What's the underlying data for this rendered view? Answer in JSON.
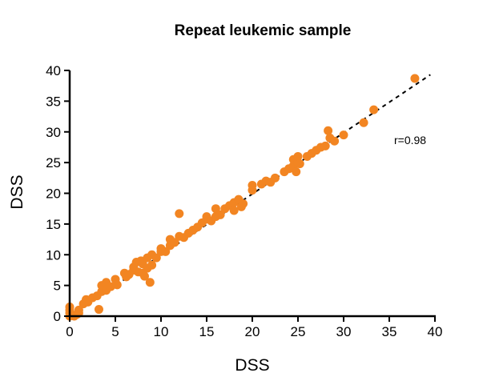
{
  "chart_data": {
    "type": "scatter",
    "title": "Repeat leukemic sample",
    "xlabel": "DSS",
    "ylabel": "DSS",
    "xlim": [
      0,
      40
    ],
    "ylim": [
      0,
      40
    ],
    "xticks": [
      0,
      5,
      10,
      15,
      20,
      25,
      30,
      35,
      40
    ],
    "yticks": [
      0,
      5,
      10,
      15,
      20,
      25,
      30,
      35,
      40
    ],
    "grid": false,
    "point_color": "#f28522",
    "annotation": "r=0.98",
    "trendline": {
      "style": "dashed",
      "color": "#000000",
      "x": [
        0,
        39.5
      ],
      "y": [
        0,
        39.3
      ]
    },
    "points": [
      [
        0,
        0
      ],
      [
        0,
        0.5
      ],
      [
        0,
        1
      ],
      [
        0,
        1.5
      ],
      [
        0.2,
        0.2
      ],
      [
        0.5,
        0
      ],
      [
        0.8,
        0.3
      ],
      [
        1,
        0.5
      ],
      [
        1,
        1
      ],
      [
        1.5,
        2
      ],
      [
        1.8,
        2.7
      ],
      [
        2,
        2.3
      ],
      [
        2.5,
        3
      ],
      [
        3,
        3.3
      ],
      [
        3.2,
        1.1
      ],
      [
        3.5,
        4
      ],
      [
        3.5,
        5
      ],
      [
        4,
        4.2
      ],
      [
        4,
        5.5
      ],
      [
        4.5,
        4.8
      ],
      [
        5,
        6
      ],
      [
        5.2,
        5.1
      ],
      [
        6,
        7
      ],
      [
        6.2,
        6.4
      ],
      [
        6.5,
        6.8
      ],
      [
        7,
        7.5
      ],
      [
        7,
        8
      ],
      [
        7.3,
        8.8
      ],
      [
        7.5,
        7.2
      ],
      [
        7.8,
        9
      ],
      [
        8,
        8.5
      ],
      [
        8,
        7
      ],
      [
        8.2,
        6.5
      ],
      [
        8.5,
        9.5
      ],
      [
        8.5,
        7.8
      ],
      [
        8.8,
        5.5
      ],
      [
        9,
        10
      ],
      [
        9,
        8.3
      ],
      [
        9.5,
        9.5
      ],
      [
        10,
        10.5
      ],
      [
        10,
        11
      ],
      [
        10.5,
        10.5
      ],
      [
        11,
        11.5
      ],
      [
        11,
        12.5
      ],
      [
        11.5,
        12
      ],
      [
        12,
        13
      ],
      [
        12,
        16.7
      ],
      [
        12.5,
        12.8
      ],
      [
        13,
        13.5
      ],
      [
        13.5,
        14
      ],
      [
        14,
        14.5
      ],
      [
        14.5,
        15.2
      ],
      [
        15,
        15.8
      ],
      [
        15,
        16.2
      ],
      [
        15.5,
        15.5
      ],
      [
        16,
        17.5
      ],
      [
        16,
        16.2
      ],
      [
        16.5,
        16.5
      ],
      [
        17,
        17.5
      ],
      [
        17.5,
        18
      ],
      [
        18,
        18.5
      ],
      [
        18,
        17.2
      ],
      [
        18.5,
        19
      ],
      [
        18.8,
        17.8
      ],
      [
        19,
        18.3
      ],
      [
        20,
        20.5
      ],
      [
        20,
        21.3
      ],
      [
        21,
        21.5
      ],
      [
        21.5,
        22
      ],
      [
        22,
        21.8
      ],
      [
        22.5,
        22.5
      ],
      [
        23.5,
        23.5
      ],
      [
        24,
        24
      ],
      [
        24.5,
        25.5
      ],
      [
        24.5,
        24.5
      ],
      [
        24.8,
        23.5
      ],
      [
        25,
        25
      ],
      [
        25,
        26
      ],
      [
        25.2,
        24.8
      ],
      [
        26,
        26
      ],
      [
        26.5,
        26.5
      ],
      [
        27,
        27
      ],
      [
        27.5,
        27.5
      ],
      [
        28,
        27.7
      ],
      [
        28.3,
        30.2
      ],
      [
        28.5,
        29
      ],
      [
        29,
        28.5
      ],
      [
        30,
        29.5
      ],
      [
        32.2,
        31.5
      ],
      [
        33.3,
        33.6
      ],
      [
        37.8,
        38.7
      ]
    ]
  }
}
